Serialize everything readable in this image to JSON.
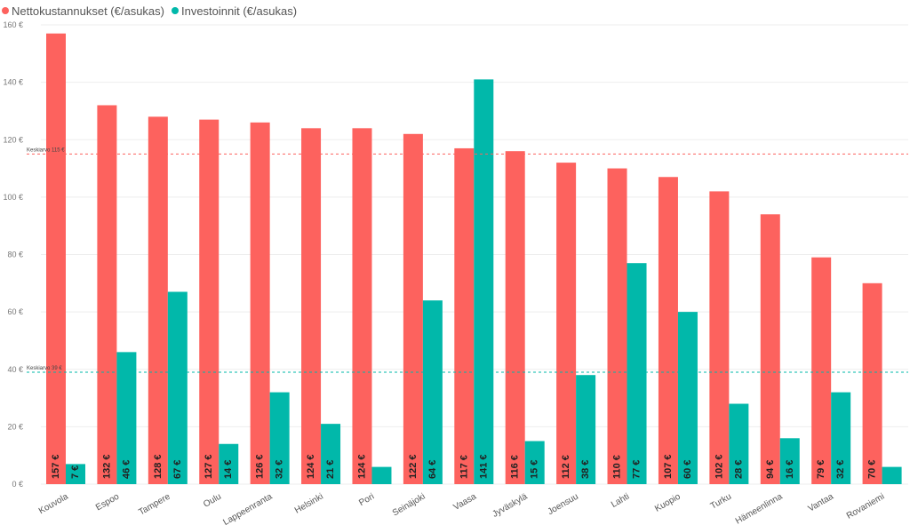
{
  "chart_data": {
    "type": "bar",
    "categories": [
      "Kouvola",
      "Espoo",
      "Tampere",
      "Oulu",
      "Lappeenranta",
      "Helsinki",
      "Pori",
      "Seinäjoki",
      "Vaasa",
      "Jyväskylä",
      "Joensuu",
      "Lahti",
      "Kuopio",
      "Turku",
      "Hämeenlinna",
      "Vantaa",
      "Rovaniemi"
    ],
    "series": [
      {
        "name": "Nettokustannukset (€/asukas)",
        "color": "#FD625E",
        "values": [
          157,
          132,
          128,
          127,
          126,
          124,
          124,
          122,
          117,
          116,
          112,
          110,
          107,
          102,
          94,
          79,
          70
        ],
        "labels": [
          "157 €",
          "132 €",
          "128 €",
          "127 €",
          "126 €",
          "124 €",
          "124 €",
          "122 €",
          "117 €",
          "116 €",
          "112 €",
          "110 €",
          "107 €",
          "102 €",
          "94 €",
          "79 €",
          "70 €"
        ]
      },
      {
        "name": "Investoinnit (€/asukas)",
        "color": "#01B8AA",
        "values": [
          7,
          46,
          67,
          14,
          32,
          21,
          6,
          64,
          141,
          15,
          38,
          77,
          60,
          28,
          16,
          32,
          6
        ],
        "labels": [
          "7 €",
          "46 €",
          "67 €",
          "14 €",
          "32 €",
          "21 €",
          "",
          "64 €",
          "141 €",
          "15 €",
          "38 €",
          "77 €",
          "60 €",
          "28 €",
          "16 €",
          "32 €",
          ""
        ]
      }
    ],
    "ylim": [
      0,
      160
    ],
    "yticks": [
      0,
      20,
      40,
      60,
      80,
      100,
      120,
      140,
      160
    ],
    "ytick_labels": [
      "0 €",
      "20 €",
      "40 €",
      "60 €",
      "80 €",
      "100 €",
      "120 €",
      "140 €",
      "160 €"
    ],
    "reference_lines": [
      {
        "label": "Keskiarvo 115 €",
        "value": 115,
        "color": "#FD625E"
      },
      {
        "label": "Keskiarvo 39 €",
        "value": 39,
        "color": "#01B8AA"
      }
    ],
    "grid": true,
    "legend_position": "top-left"
  }
}
